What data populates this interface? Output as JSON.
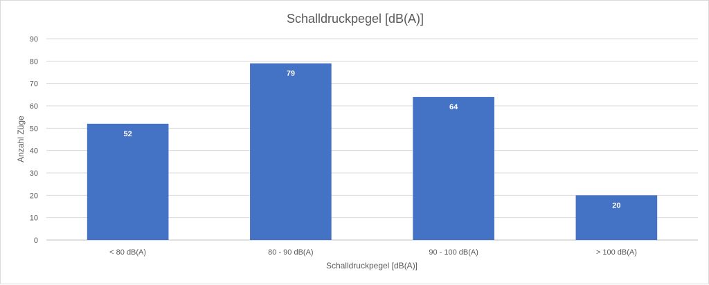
{
  "chart_data": {
    "type": "bar",
    "title": "Schalldruckpegel  [dB(A)]",
    "xlabel": "Schalldruckpegel [dB(A)]",
    "ylabel": "Anzahl Züge",
    "categories": [
      "< 80 dB(A)",
      "80 - 90 dB(A)",
      "90 - 100 dB(A)",
      "> 100 dB(A)"
    ],
    "values": [
      52,
      79,
      64,
      20
    ],
    "ylim": [
      0,
      90
    ],
    "yticks": [
      "0",
      "10",
      "20",
      "30",
      "40",
      "50",
      "60",
      "70",
      "80",
      "90"
    ],
    "grid": true,
    "legend": "none",
    "bar_color": "#4472c4"
  }
}
